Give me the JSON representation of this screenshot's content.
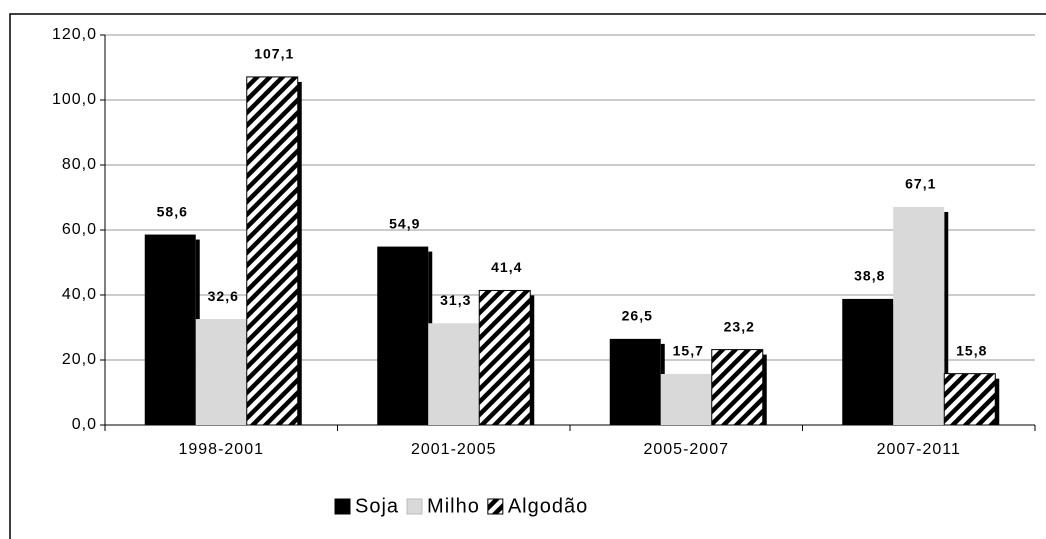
{
  "chart_data": {
    "type": "bar",
    "categories": [
      "1998-2001",
      "2001-2005",
      "2005-2007",
      "2007-2011"
    ],
    "series": [
      {
        "name": "Soja",
        "color": "#000000",
        "hatch": false,
        "values": [
          58.6,
          54.9,
          26.5,
          38.8
        ],
        "value_labels": [
          "58,6",
          "54,9",
          "26,5",
          "38,8"
        ]
      },
      {
        "name": "Milho",
        "color": "#d9d9d9",
        "hatch": false,
        "values": [
          32.6,
          31.3,
          15.7,
          67.1
        ],
        "value_labels": [
          "32,6",
          "31,3",
          "15,7",
          "67,1"
        ]
      },
      {
        "name": "Algodão",
        "color": "#000000",
        "hatch": true,
        "values": [
          107.1,
          41.4,
          23.2,
          15.8
        ],
        "value_labels": [
          "107,1",
          "41,4",
          "23,2",
          "15,8"
        ]
      }
    ],
    "ylim": [
      0,
      120
    ],
    "yticks": [
      {
        "value": 0,
        "label": "0,0"
      },
      {
        "value": 20,
        "label": "20,0"
      },
      {
        "value": 40,
        "label": "40,0"
      },
      {
        "value": 60,
        "label": "60,0"
      },
      {
        "value": 80,
        "label": "80,0"
      },
      {
        "value": 100,
        "label": "100,0"
      },
      {
        "value": 120,
        "label": "120,0"
      }
    ],
    "grid": true
  }
}
